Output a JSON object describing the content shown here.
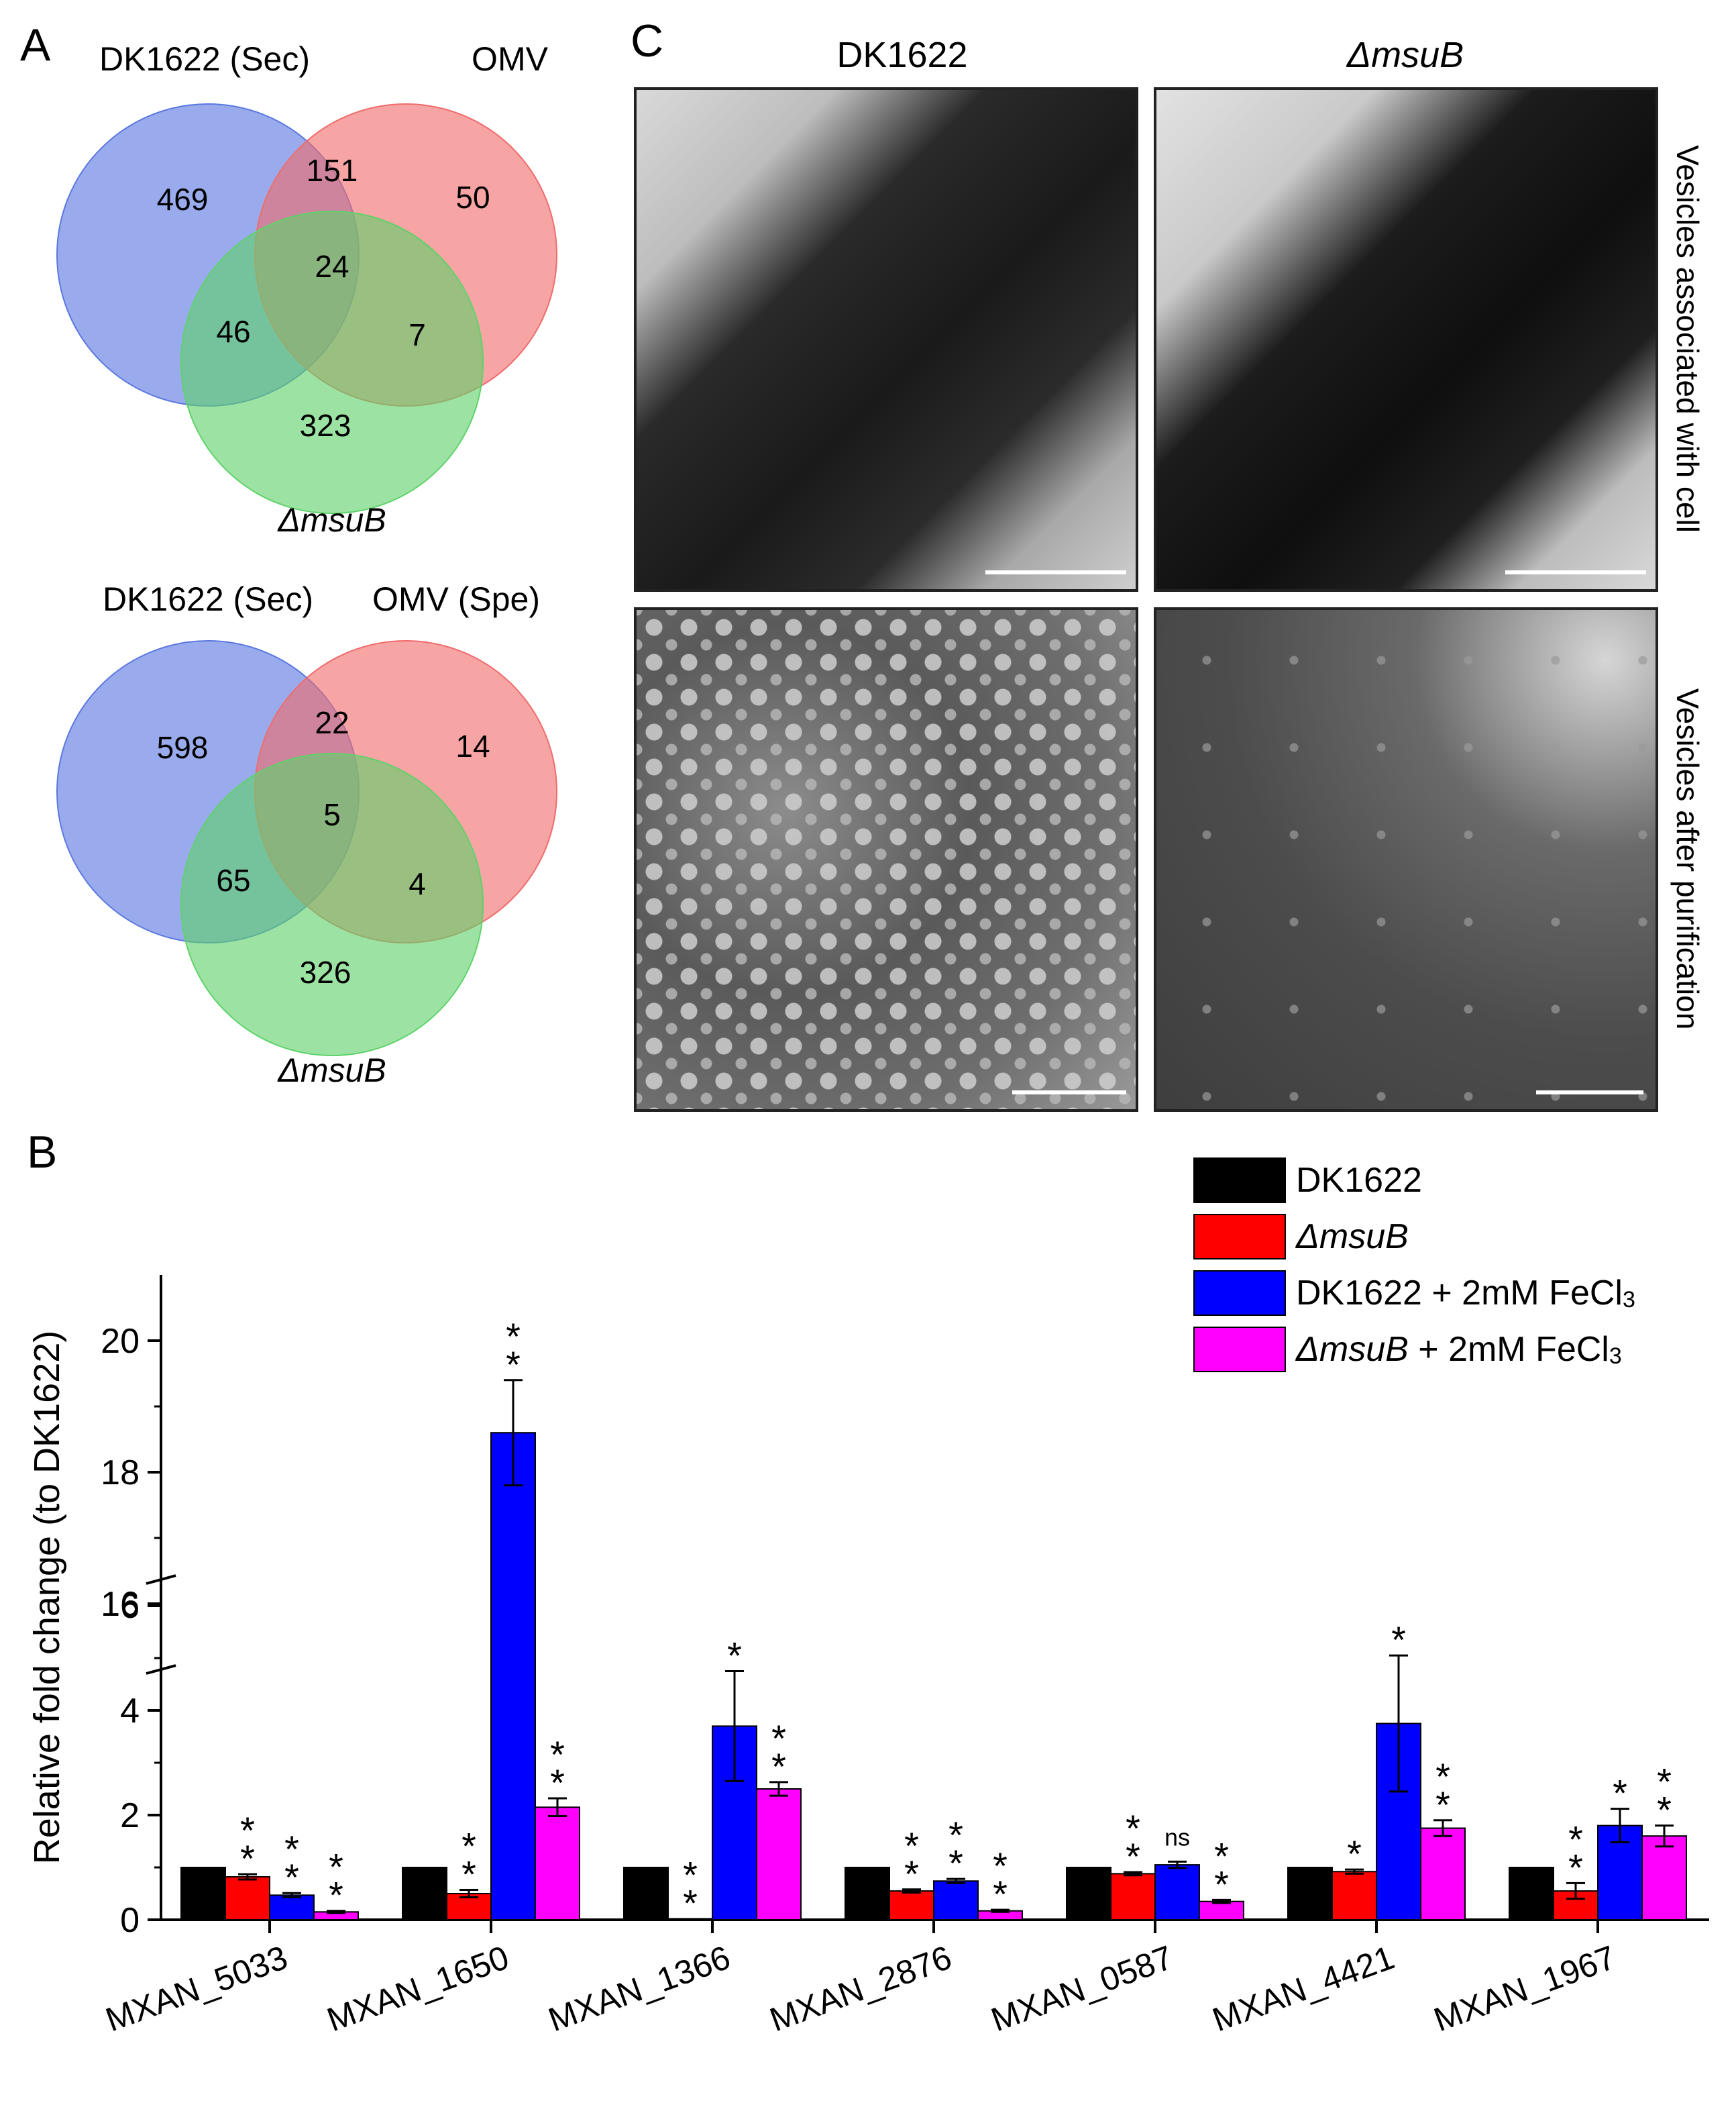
{
  "panels": {
    "a": "A",
    "b": "B",
    "c": "C"
  },
  "venn_top": {
    "labels": [
      "DK1622 (Sec)",
      "OMV",
      "ΔmsuB"
    ],
    "regions": {
      "only_a": "469",
      "ab": "151",
      "only_b": "50",
      "abc": "24",
      "ac": "46",
      "bc": "7",
      "only_c": "323"
    }
  },
  "venn_bottom": {
    "labels": [
      "DK1622 (Sec)",
      "OMV (Spe)",
      "ΔmsuB"
    ],
    "regions": {
      "only_a": "598",
      "ab": "22",
      "only_b": "14",
      "abc": "5",
      "ac": "65",
      "bc": "4",
      "only_c": "326"
    }
  },
  "em": {
    "col1": "DK1622",
    "col2": "ΔmsuB",
    "row1": "Vesicles associated with cell",
    "row2": "Vesicles after purification"
  },
  "colors": {
    "venn_a": "#5b78e0",
    "venn_b": "#f06c6c",
    "venn_c": "#5fd26a",
    "s0": "#000000",
    "s1": "#ff0000",
    "s2": "#0000ff",
    "s3": "#ff00ff"
  },
  "chart_data": {
    "type": "bar",
    "ylabel": "Relative fold change (to DK1622)",
    "y_ticks_lower": [
      0,
      2,
      4,
      6
    ],
    "y_ticks_upper": [
      16,
      18,
      20
    ],
    "axis_break": [
      6.5,
      15
    ],
    "categories": [
      "MXAN_5033",
      "MXAN_1650",
      "MXAN_1366",
      "MXAN_2876",
      "MXAN_0587",
      "MXAN_4421",
      "MXAN_1967"
    ],
    "series": [
      {
        "name": "DK1622",
        "legend_main": "DK1622",
        "legend_rest": "",
        "values": [
          1,
          1,
          1,
          1,
          1,
          1,
          1
        ],
        "errors": [
          0,
          0,
          0,
          0,
          0,
          0,
          0
        ],
        "sig": [
          "",
          "",
          "",
          "",
          "",
          "",
          ""
        ]
      },
      {
        "name": "ΔmsuB",
        "legend_main": "ΔmsuB",
        "legend_rest": "",
        "values": [
          0.82,
          0.5,
          0.02,
          0.55,
          0.88,
          0.92,
          0.55
        ],
        "errors": [
          0.05,
          0.07,
          0,
          0.03,
          0.03,
          0.04,
          0.15
        ],
        "sig": [
          "**",
          "**",
          "**",
          "**",
          "**",
          "*",
          "**"
        ]
      },
      {
        "name": "DK1622 + 2mM FeCl3",
        "legend_main": "DK1622",
        "legend_rest": " + 2mM FeCl",
        "legend_sub": "3",
        "values": [
          0.47,
          18.6,
          3.7,
          0.74,
          1.05,
          3.75,
          1.8
        ],
        "errors": [
          0.04,
          0.8,
          1.05,
          0.04,
          0.06,
          1.3,
          0.32
        ],
        "sig": [
          "**",
          "**",
          "*",
          "**",
          "ns",
          "*",
          "*"
        ]
      },
      {
        "name": "ΔmsuB + 2mM FeCl3",
        "legend_main": "ΔmsuB",
        "legend_rest": " + 2mM FeCl",
        "legend_sub": "3",
        "values": [
          0.15,
          2.15,
          2.5,
          0.17,
          0.35,
          1.75,
          1.6
        ],
        "errors": [
          0.02,
          0.17,
          0.13,
          0.02,
          0.03,
          0.15,
          0.2
        ],
        "sig": [
          "**",
          "**",
          "**",
          "**",
          "**",
          "**",
          "**"
        ]
      }
    ]
  }
}
